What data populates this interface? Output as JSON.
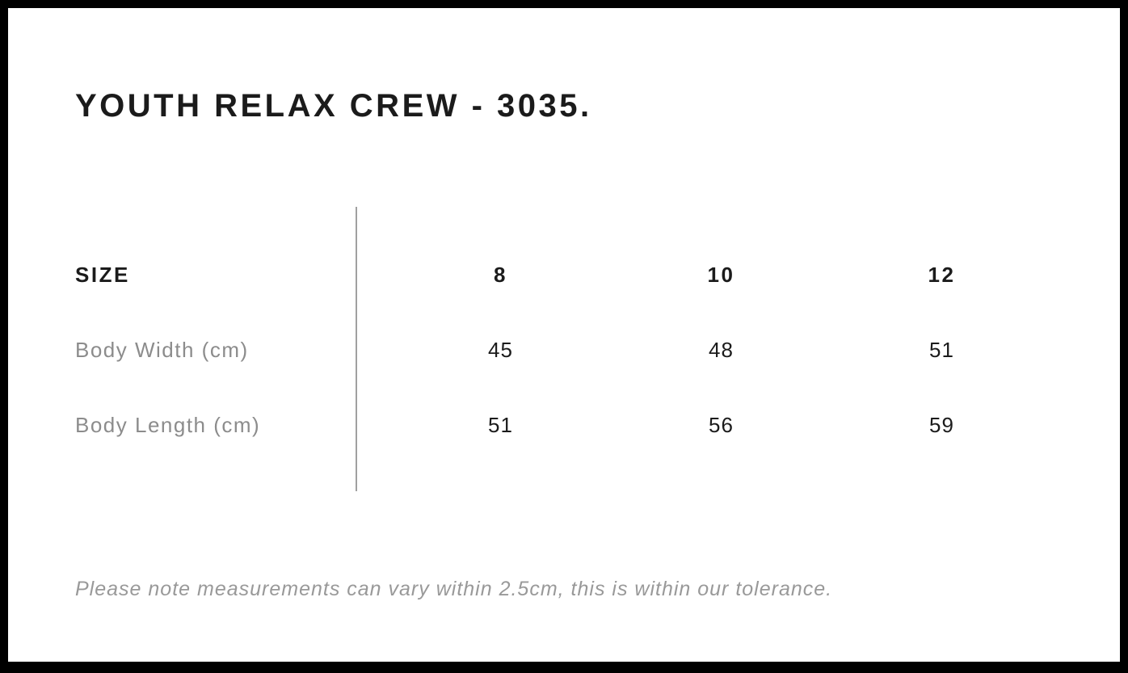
{
  "chart_data": {
    "type": "table",
    "title": "YOUTH RELAX CREW - 3035.",
    "columns": [
      "SIZE",
      "8",
      "10",
      "12"
    ],
    "rows": [
      [
        "Body Width (cm)",
        "45",
        "48",
        "51"
      ],
      [
        "Body Length (cm)",
        "51",
        "56",
        "59"
      ]
    ],
    "note": "Please note measurements can vary within 2.5cm, this is within our tolerance.",
    "layout_hints": {
      "label_column_color": "#8c8c8c",
      "value_color": "#1b1b1b",
      "divider_color": "#a0a0a0",
      "frame_color": "#000000",
      "background_color": "#ffffff",
      "note_style": "italic gray"
    }
  }
}
